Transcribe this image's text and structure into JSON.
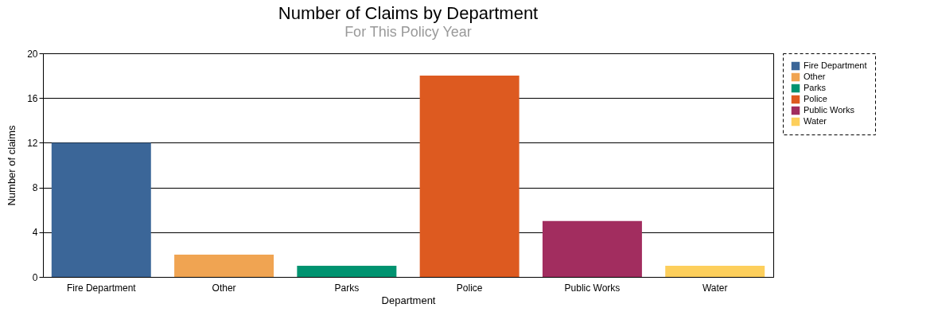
{
  "chart_data": {
    "type": "bar",
    "title": "Number of Claims by Department",
    "subtitle": "For This Policy Year",
    "xlabel": "Department",
    "ylabel": "Number of claims",
    "categories": [
      "Fire Department",
      "Other",
      "Parks",
      "Police",
      "Public Works",
      "Water"
    ],
    "stacked": true,
    "series": [
      {
        "name": "Fire Department",
        "color": "#3b6698",
        "values": [
          12,
          null,
          null,
          null,
          null,
          null
        ]
      },
      {
        "name": "Other",
        "color": "#f0a452",
        "values": [
          null,
          2,
          null,
          null,
          null,
          null
        ]
      },
      {
        "name": "Parks",
        "color": "#009370",
        "values": [
          null,
          null,
          1,
          null,
          null,
          null
        ]
      },
      {
        "name": "Police",
        "color": "#dd5a20",
        "values": [
          null,
          null,
          null,
          18,
          null,
          null
        ]
      },
      {
        "name": "Public Works",
        "color": "#a22d5f",
        "values": [
          null,
          null,
          null,
          null,
          5,
          null
        ]
      },
      {
        "name": "Water",
        "color": "#fdcf5c",
        "values": [
          null,
          null,
          null,
          null,
          null,
          1
        ]
      }
    ],
    "ylim": [
      0,
      20
    ],
    "yticks": [
      0,
      4,
      8,
      12,
      16,
      20
    ],
    "grid": "y",
    "legend": "right"
  }
}
